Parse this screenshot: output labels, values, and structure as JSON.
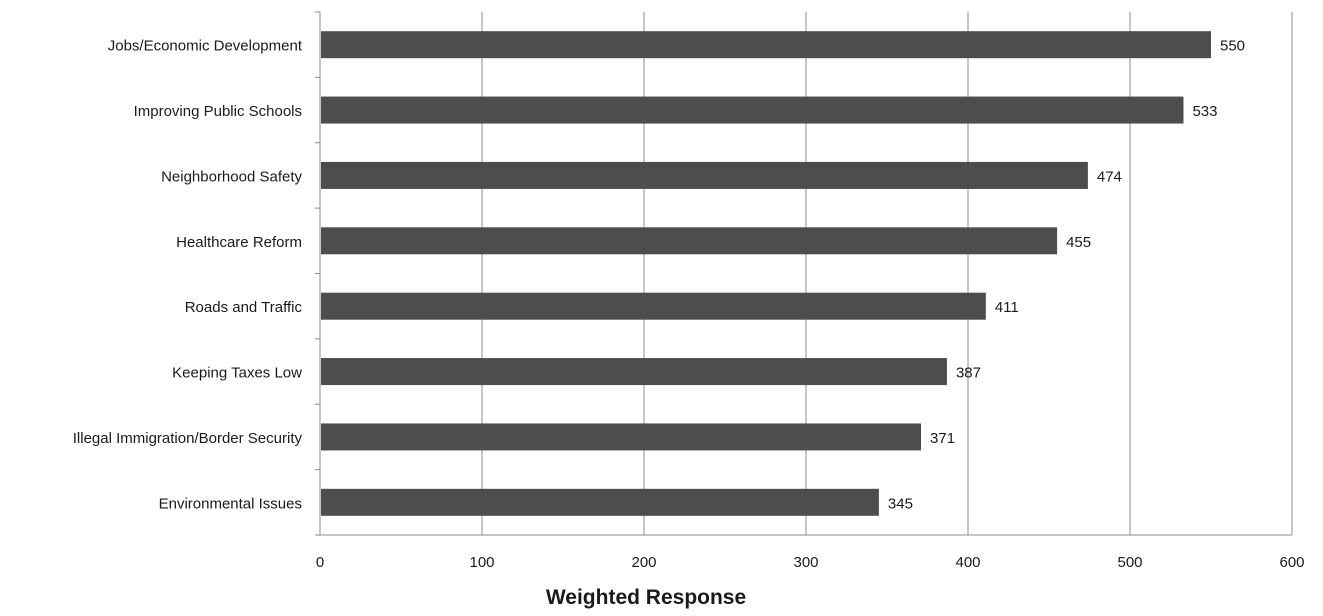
{
  "chart_data": {
    "type": "bar",
    "orientation": "horizontal",
    "categories": [
      "Jobs/Economic Development",
      "Improving Public Schools",
      "Neighborhood Safety",
      "Healthcare Reform",
      "Roads and Traffic",
      "Keeping Taxes Low",
      "Illegal Immigration/Border Security",
      "Environmental Issues"
    ],
    "values": [
      550,
      533,
      474,
      455,
      411,
      387,
      371,
      345
    ],
    "xlabel": "Weighted Response",
    "ylabel": "",
    "xlim": [
      0,
      600
    ],
    "xticks": [
      0,
      100,
      200,
      300,
      400,
      500,
      600
    ],
    "grid": "vertical",
    "data_labels": true,
    "legend": "none",
    "colors": {
      "bar": "#4d4d4d",
      "grid": "#8c8c8c",
      "axis": "#8c8c8c",
      "text": "#1a1a1a"
    }
  }
}
